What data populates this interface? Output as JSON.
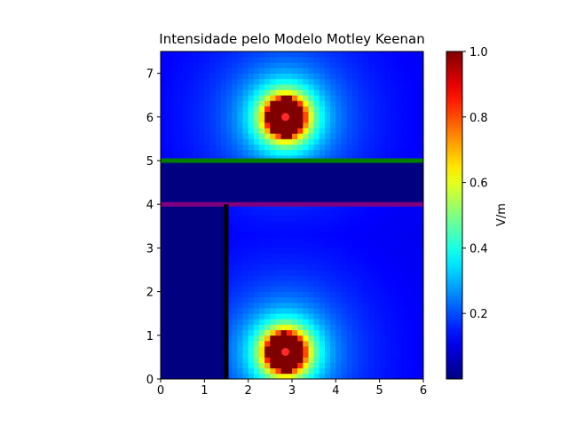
{
  "chart_data": {
    "type": "heatmap",
    "title": "Intensidade pelo Modelo Motley Keenan",
    "xlabel": "",
    "ylabel": "",
    "xlim": [
      0,
      6
    ],
    "ylim": [
      0,
      7.5
    ],
    "x_ticks": [
      "0",
      "1",
      "2",
      "3",
      "4",
      "5",
      "6"
    ],
    "y_ticks": [
      "0",
      "1",
      "2",
      "3",
      "4",
      "5",
      "6",
      "7"
    ],
    "colormap": "jet",
    "colorbar": {
      "label": "V/m",
      "range": [
        0.0,
        1.0
      ],
      "ticks": [
        "0.2",
        "0.4",
        "0.6",
        "0.8",
        "1.0"
      ]
    },
    "grid_resolution": 0.125,
    "sources": [
      {
        "x": 2.85,
        "y": 0.62,
        "color": "#ff2a2a"
      },
      {
        "x": 2.85,
        "y": 6.0,
        "color": "#ff2a2a"
      }
    ],
    "zones": [
      {
        "y_min": 0,
        "y_max": 4.0,
        "x_min": 0,
        "x_max": 1.5,
        "level": 0.0
      },
      {
        "y_min": 4.0,
        "y_max": 5.0,
        "x_min": 0,
        "x_max": 6,
        "level": 0.0
      }
    ],
    "walls": [
      {
        "type": "horizontal",
        "y": 5.0,
        "x_start": 0,
        "x_end": 6,
        "color": "#008000"
      },
      {
        "type": "horizontal",
        "y": 4.0,
        "x_start": 0,
        "x_end": 6,
        "color": "#800080"
      },
      {
        "type": "vertical",
        "x": 1.5,
        "y_start": 0,
        "y_end": 4.0,
        "color": "#000000"
      }
    ]
  }
}
